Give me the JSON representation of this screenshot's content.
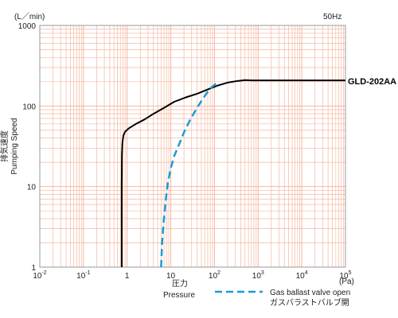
{
  "chart_data": {
    "type": "line",
    "x_scale": "log",
    "y_scale": "log",
    "xlim": [
      0.01,
      100000
    ],
    "ylim": [
      1,
      1000
    ],
    "grid": true,
    "grid_color": "#f4b7a0",
    "y_unit_label": "(L／min)",
    "frequency_label": "50Hz",
    "x_unit_label": "(Pa)",
    "xlabel_jp": "圧力",
    "xlabel": "Pressure",
    "ylabel_jp": "排気速度",
    "ylabel": "Pumping Speed",
    "x_ticks": [
      {
        "value": 0.01,
        "base": "10",
        "exp": "-2"
      },
      {
        "value": 0.1,
        "base": "10",
        "exp": "-1"
      },
      {
        "value": 1,
        "base": "1",
        "exp": ""
      },
      {
        "value": 10,
        "base": "10",
        "exp": ""
      },
      {
        "value": 100,
        "base": "10",
        "exp": "2"
      },
      {
        "value": 1000,
        "base": "10",
        "exp": "3"
      },
      {
        "value": 10000,
        "base": "10",
        "exp": "4"
      },
      {
        "value": 100000,
        "base": "10",
        "exp": "5"
      }
    ],
    "y_ticks": [
      {
        "value": 1,
        "label": "1"
      },
      {
        "value": 10,
        "label": "10"
      },
      {
        "value": 100,
        "label": "100"
      },
      {
        "value": 1000,
        "label": "1000"
      }
    ],
    "series": [
      {
        "name": "GLD-202AA",
        "color": "#000000",
        "style": "solid",
        "x": [
          0.75,
          0.75,
          0.76,
          0.78,
          0.82,
          0.9,
          1.1,
          1.6,
          2.5,
          4,
          7,
          12,
          22,
          40,
          70,
          120,
          200,
          350,
          500,
          700,
          1000,
          3000,
          10000,
          30000,
          100000
        ],
        "y": [
          1,
          10,
          25,
          35,
          43,
          48,
          53,
          60,
          68,
          80,
          95,
          113,
          128,
          142,
          160,
          180,
          195,
          205,
          210,
          208,
          208,
          208,
          208,
          208,
          208
        ]
      },
      {
        "name": "Gas ballast valve open",
        "name_jp": "ガスバラストバルブ開",
        "color": "#1e9ad6",
        "style": "dashed",
        "x": [
          6,
          6.3,
          6.8,
          7.5,
          8.5,
          10,
          12,
          15,
          20,
          28,
          40,
          55,
          70,
          90,
          110
        ],
        "y": [
          1,
          2,
          3.5,
          6,
          11,
          17,
          24,
          32,
          47,
          68,
          95,
          125,
          150,
          175,
          190
        ]
      }
    ]
  }
}
